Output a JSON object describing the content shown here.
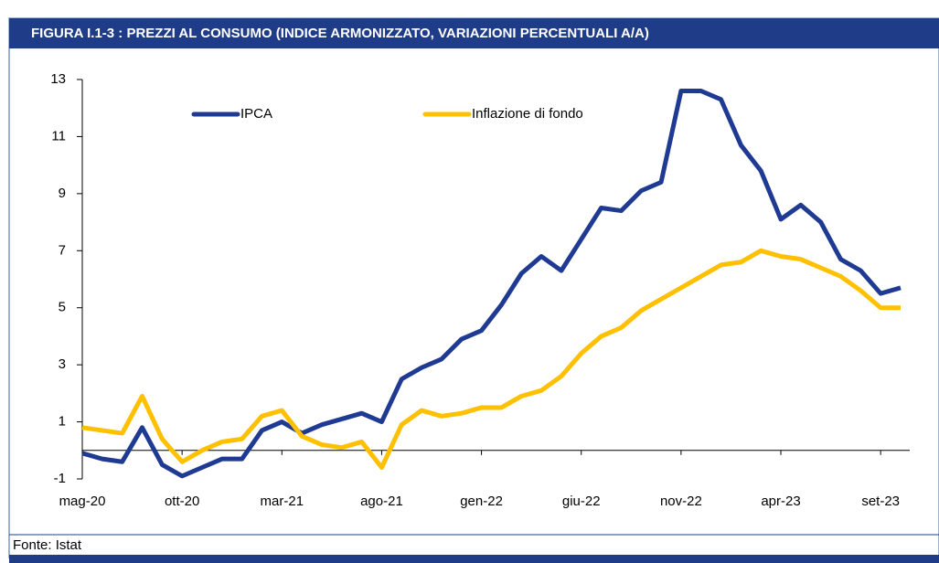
{
  "chart_data": {
    "type": "line",
    "title": "FIGURA I.1-3 : PREZZI AL CONSUMO (INDICE ARMONIZZATO, VARIAZIONI PERCENTUALI A/A)",
    "source": "Fonte: Istat",
    "categories": [
      "mag-20",
      null,
      null,
      null,
      null,
      "ott-20",
      null,
      null,
      null,
      null,
      "mar-21",
      null,
      null,
      null,
      null,
      "ago-21",
      null,
      null,
      null,
      null,
      "gen-22",
      null,
      null,
      null,
      null,
      "giu-22",
      null,
      null,
      null,
      null,
      "nov-22",
      null,
      null,
      null,
      null,
      "apr-23",
      null,
      null,
      null,
      null,
      "set-23",
      null
    ],
    "series": [
      {
        "name": "IPCA",
        "color": "#1f3a93",
        "values": [
          -0.1,
          -0.3,
          -0.4,
          0.8,
          -0.5,
          -0.9,
          -0.6,
          -0.3,
          -0.3,
          0.7,
          1.0,
          0.6,
          0.9,
          1.1,
          1.3,
          1.0,
          2.5,
          2.9,
          3.2,
          3.9,
          4.2,
          5.1,
          6.2,
          6.8,
          6.3,
          7.4,
          8.5,
          8.4,
          9.1,
          9.4,
          12.6,
          12.6,
          12.3,
          10.7,
          9.8,
          8.1,
          8.6,
          8.0,
          6.7,
          6.3,
          5.5,
          5.7
        ]
      },
      {
        "name": "Inflazione di fondo",
        "color": "#ffc000",
        "values": [
          0.8,
          0.7,
          0.6,
          1.9,
          0.4,
          -0.4,
          0.0,
          0.3,
          0.4,
          1.2,
          1.4,
          0.5,
          0.2,
          0.1,
          0.3,
          -0.6,
          0.9,
          1.4,
          1.2,
          1.3,
          1.5,
          1.5,
          1.9,
          2.1,
          2.6,
          3.4,
          4.0,
          4.3,
          4.9,
          5.3,
          5.7,
          6.1,
          6.5,
          6.6,
          7.0,
          6.8,
          6.7,
          6.4,
          6.1,
          5.6,
          5.0,
          5.0
        ]
      }
    ],
    "ylim": [
      -1,
      13
    ],
    "yticks": [
      -1,
      1,
      3,
      5,
      7,
      9,
      11,
      13
    ],
    "grid": false
  }
}
